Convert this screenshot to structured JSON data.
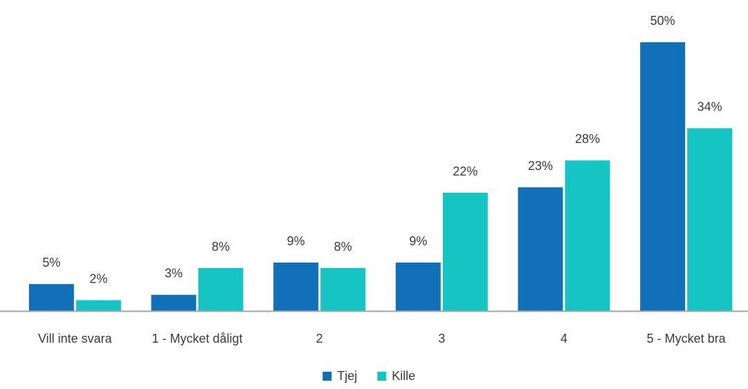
{
  "chart_data": {
    "type": "bar",
    "categories": [
      "Vill inte svara",
      "1 - Mycket dåligt",
      "2",
      "3",
      "4",
      "5 - Mycket bra"
    ],
    "series": [
      {
        "name": "Tjej",
        "color": "#1170b8",
        "values": [
          5,
          3,
          9,
          9,
          23,
          50
        ],
        "labels": [
          "5%",
          "3%",
          "9%",
          "9%",
          "23%",
          "50%"
        ]
      },
      {
        "name": "Kille",
        "color": "#17c4c4",
        "values": [
          2,
          8,
          8,
          22,
          28,
          34
        ],
        "labels": [
          "2%",
          "8%",
          "8%",
          "22%",
          "28%",
          "34%"
        ]
      }
    ],
    "ylim": [
      0,
      54
    ],
    "grid": false,
    "legend_position": "bottom-center",
    "axis_color": "#a6a6a6"
  }
}
